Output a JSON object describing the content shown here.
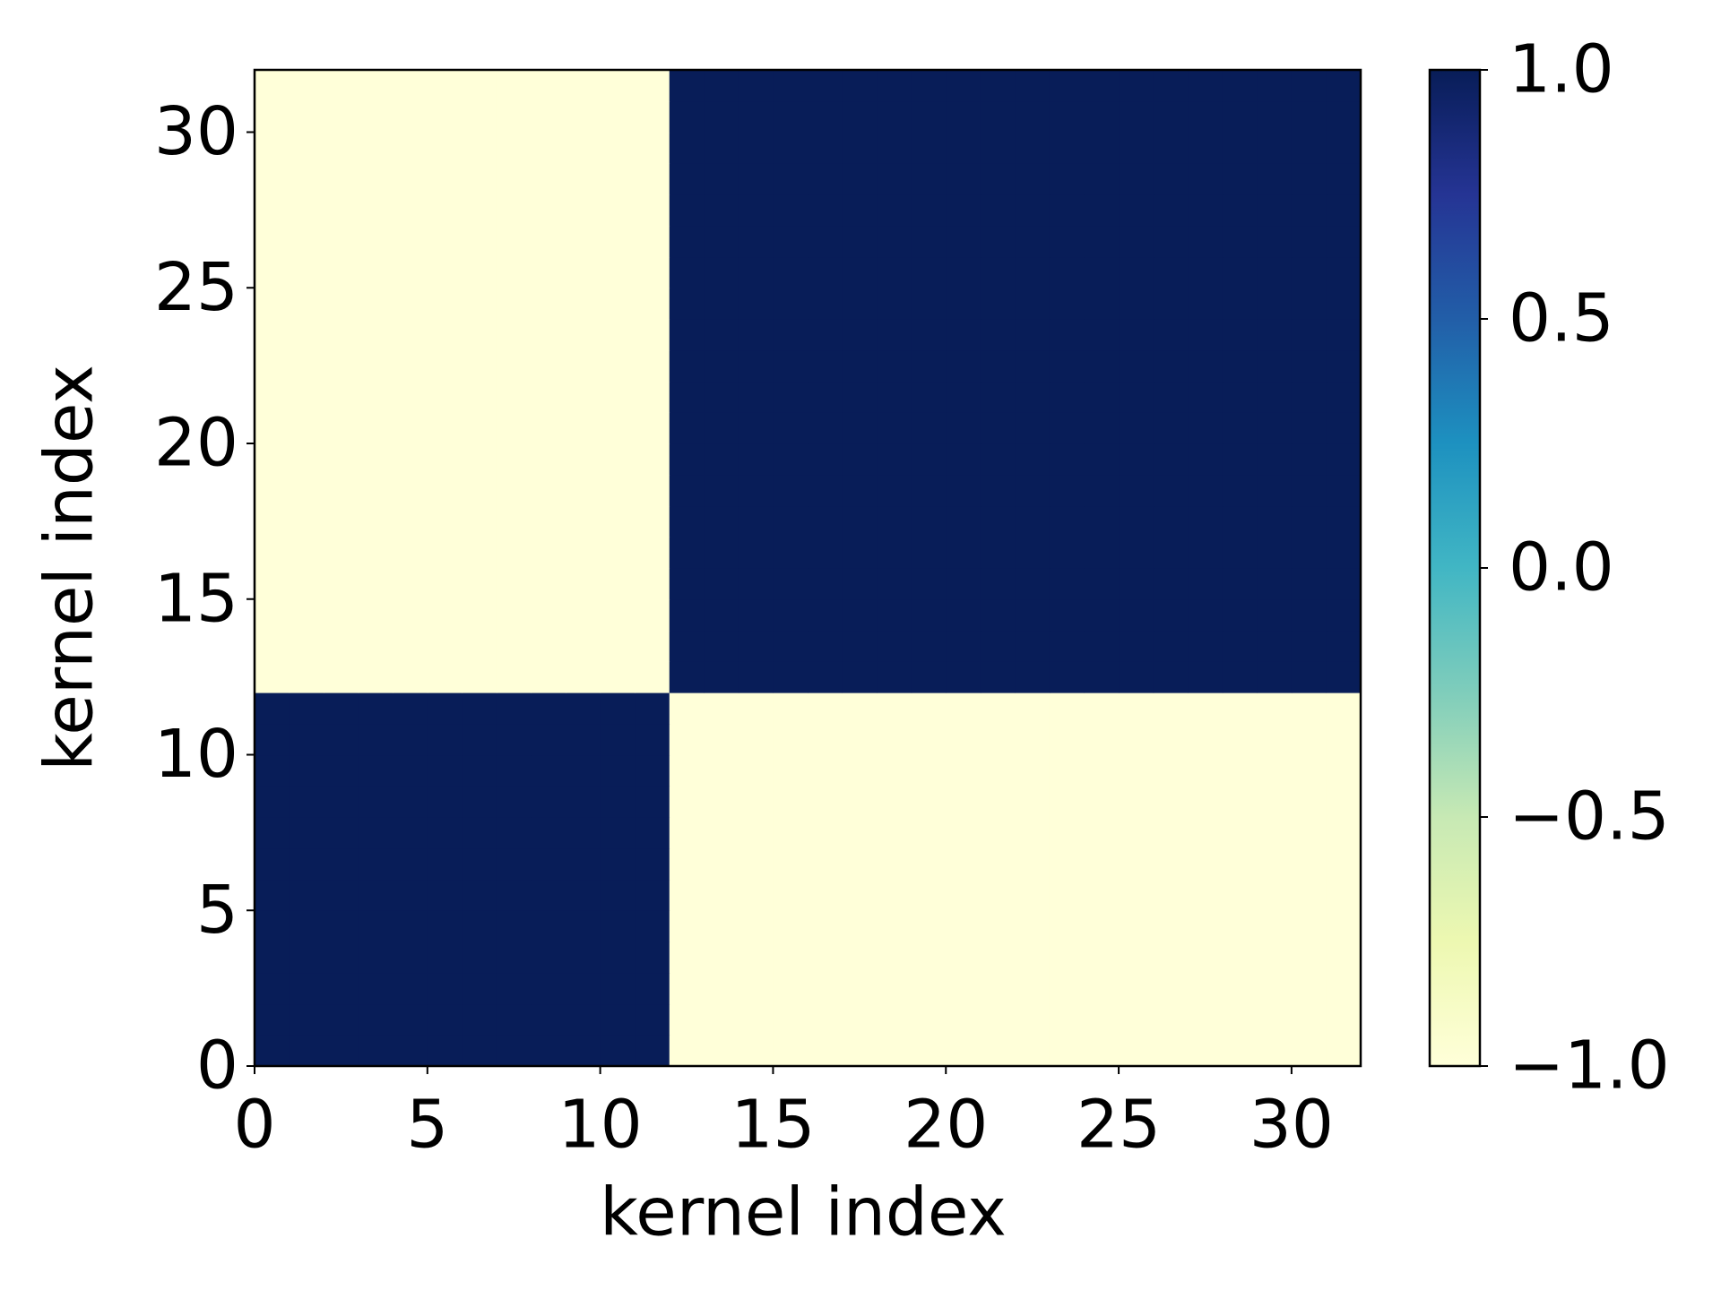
{
  "chart_data": {
    "type": "heatmap",
    "xlabel": "kernel index",
    "ylabel": "kernel index",
    "xlim": [
      0,
      32
    ],
    "ylim": [
      0,
      32
    ],
    "xticks": [
      0,
      5,
      10,
      15,
      20,
      25,
      30
    ],
    "yticks": [
      0,
      5,
      10,
      15,
      20,
      25,
      30
    ],
    "z": [
      [
        1,
        1,
        1,
        1,
        1,
        1,
        1,
        1,
        1,
        1,
        1,
        1,
        -1,
        -1,
        -1,
        -1,
        -1,
        -1,
        -1,
        -1,
        -1,
        -1,
        -1,
        -1,
        -1,
        -1,
        -1,
        -1,
        -1,
        -1,
        -1,
        -1
      ],
      [
        1,
        1,
        1,
        1,
        1,
        1,
        1,
        1,
        1,
        1,
        1,
        1,
        -1,
        -1,
        -1,
        -1,
        -1,
        -1,
        -1,
        -1,
        -1,
        -1,
        -1,
        -1,
        -1,
        -1,
        -1,
        -1,
        -1,
        -1,
        -1,
        -1
      ],
      [
        1,
        1,
        1,
        1,
        1,
        1,
        1,
        1,
        1,
        1,
        1,
        1,
        -1,
        -1,
        -1,
        -1,
        -1,
        -1,
        -1,
        -1,
        -1,
        -1,
        -1,
        -1,
        -1,
        -1,
        -1,
        -1,
        -1,
        -1,
        -1,
        -1
      ],
      [
        1,
        1,
        1,
        1,
        1,
        1,
        1,
        1,
        1,
        1,
        1,
        1,
        -1,
        -1,
        -1,
        -1,
        -1,
        -1,
        -1,
        -1,
        -1,
        -1,
        -1,
        -1,
        -1,
        -1,
        -1,
        -1,
        -1,
        -1,
        -1,
        -1
      ],
      [
        1,
        1,
        1,
        1,
        1,
        1,
        1,
        1,
        1,
        1,
        1,
        1,
        -1,
        -1,
        -1,
        -1,
        -1,
        -1,
        -1,
        -1,
        -1,
        -1,
        -1,
        -1,
        -1,
        -1,
        -1,
        -1,
        -1,
        -1,
        -1,
        -1
      ],
      [
        1,
        1,
        1,
        1,
        1,
        1,
        1,
        1,
        1,
        1,
        1,
        1,
        -1,
        -1,
        -1,
        -1,
        -1,
        -1,
        -1,
        -1,
        -1,
        -1,
        -1,
        -1,
        -1,
        -1,
        -1,
        -1,
        -1,
        -1,
        -1,
        -1
      ],
      [
        1,
        1,
        1,
        1,
        1,
        1,
        1,
        1,
        1,
        1,
        1,
        1,
        -1,
        -1,
        -1,
        -1,
        -1,
        -1,
        -1,
        -1,
        -1,
        -1,
        -1,
        -1,
        -1,
        -1,
        -1,
        -1,
        -1,
        -1,
        -1,
        -1
      ],
      [
        1,
        1,
        1,
        1,
        1,
        1,
        1,
        1,
        1,
        1,
        1,
        1,
        -1,
        -1,
        -1,
        -1,
        -1,
        -1,
        -1,
        -1,
        -1,
        -1,
        -1,
        -1,
        -1,
        -1,
        -1,
        -1,
        -1,
        -1,
        -1,
        -1
      ],
      [
        1,
        1,
        1,
        1,
        1,
        1,
        1,
        1,
        1,
        1,
        1,
        1,
        -1,
        -1,
        -1,
        -1,
        -1,
        -1,
        -1,
        -1,
        -1,
        -1,
        -1,
        -1,
        -1,
        -1,
        -1,
        -1,
        -1,
        -1,
        -1,
        -1
      ],
      [
        1,
        1,
        1,
        1,
        1,
        1,
        1,
        1,
        1,
        1,
        1,
        1,
        -1,
        -1,
        -1,
        -1,
        -1,
        -1,
        -1,
        -1,
        -1,
        -1,
        -1,
        -1,
        -1,
        -1,
        -1,
        -1,
        -1,
        -1,
        -1,
        -1
      ],
      [
        1,
        1,
        1,
        1,
        1,
        1,
        1,
        1,
        1,
        1,
        1,
        1,
        -1,
        -1,
        -1,
        -1,
        -1,
        -1,
        -1,
        -1,
        -1,
        -1,
        -1,
        -1,
        -1,
        -1,
        -1,
        -1,
        -1,
        -1,
        -1,
        -1
      ],
      [
        1,
        1,
        1,
        1,
        1,
        1,
        1,
        1,
        1,
        1,
        1,
        1,
        -1,
        -1,
        -1,
        -1,
        -1,
        -1,
        -1,
        -1,
        -1,
        -1,
        -1,
        -1,
        -1,
        -1,
        -1,
        -1,
        -1,
        -1,
        -1,
        -1
      ],
      [
        -1,
        -1,
        -1,
        -1,
        -1,
        -1,
        -1,
        -1,
        -1,
        -1,
        -1,
        -1,
        1,
        1,
        1,
        1,
        1,
        1,
        1,
        1,
        1,
        1,
        1,
        1,
        1,
        1,
        1,
        1,
        1,
        1,
        1,
        1
      ],
      [
        -1,
        -1,
        -1,
        -1,
        -1,
        -1,
        -1,
        -1,
        -1,
        -1,
        -1,
        -1,
        1,
        1,
        1,
        1,
        1,
        1,
        1,
        1,
        1,
        1,
        1,
        1,
        1,
        1,
        1,
        1,
        1,
        1,
        1,
        1
      ],
      [
        -1,
        -1,
        -1,
        -1,
        -1,
        -1,
        -1,
        -1,
        -1,
        -1,
        -1,
        -1,
        1,
        1,
        1,
        1,
        1,
        1,
        1,
        1,
        1,
        1,
        1,
        1,
        1,
        1,
        1,
        1,
        1,
        1,
        1,
        1
      ],
      [
        -1,
        -1,
        -1,
        -1,
        -1,
        -1,
        -1,
        -1,
        -1,
        -1,
        -1,
        -1,
        1,
        1,
        1,
        1,
        1,
        1,
        1,
        1,
        1,
        1,
        1,
        1,
        1,
        1,
        1,
        1,
        1,
        1,
        1,
        1
      ],
      [
        -1,
        -1,
        -1,
        -1,
        -1,
        -1,
        -1,
        -1,
        -1,
        -1,
        -1,
        -1,
        1,
        1,
        1,
        1,
        1,
        1,
        1,
        1,
        1,
        1,
        1,
        1,
        1,
        1,
        1,
        1,
        1,
        1,
        1,
        1
      ],
      [
        -1,
        -1,
        -1,
        -1,
        -1,
        -1,
        -1,
        -1,
        -1,
        -1,
        -1,
        -1,
        1,
        1,
        1,
        1,
        1,
        1,
        1,
        1,
        1,
        1,
        1,
        1,
        1,
        1,
        1,
        1,
        1,
        1,
        1,
        1
      ],
      [
        -1,
        -1,
        -1,
        -1,
        -1,
        -1,
        -1,
        -1,
        -1,
        -1,
        -1,
        -1,
        1,
        1,
        1,
        1,
        1,
        1,
        1,
        1,
        1,
        1,
        1,
        1,
        1,
        1,
        1,
        1,
        1,
        1,
        1,
        1
      ],
      [
        -1,
        -1,
        -1,
        -1,
        -1,
        -1,
        -1,
        -1,
        -1,
        -1,
        -1,
        -1,
        1,
        1,
        1,
        1,
        1,
        1,
        1,
        1,
        1,
        1,
        1,
        1,
        1,
        1,
        1,
        1,
        1,
        1,
        1,
        1
      ],
      [
        -1,
        -1,
        -1,
        -1,
        -1,
        -1,
        -1,
        -1,
        -1,
        -1,
        -1,
        -1,
        1,
        1,
        1,
        1,
        1,
        1,
        1,
        1,
        1,
        1,
        1,
        1,
        1,
        1,
        1,
        1,
        1,
        1,
        1,
        1
      ],
      [
        -1,
        -1,
        -1,
        -1,
        -1,
        -1,
        -1,
        -1,
        -1,
        -1,
        -1,
        -1,
        1,
        1,
        1,
        1,
        1,
        1,
        1,
        1,
        1,
        1,
        1,
        1,
        1,
        1,
        1,
        1,
        1,
        1,
        1,
        1
      ],
      [
        -1,
        -1,
        -1,
        -1,
        -1,
        -1,
        -1,
        -1,
        -1,
        -1,
        -1,
        -1,
        1,
        1,
        1,
        1,
        1,
        1,
        1,
        1,
        1,
        1,
        1,
        1,
        1,
        1,
        1,
        1,
        1,
        1,
        1,
        1
      ],
      [
        -1,
        -1,
        -1,
        -1,
        -1,
        -1,
        -1,
        -1,
        -1,
        -1,
        -1,
        -1,
        1,
        1,
        1,
        1,
        1,
        1,
        1,
        1,
        1,
        1,
        1,
        1,
        1,
        1,
        1,
        1,
        1,
        1,
        1,
        1
      ],
      [
        -1,
        -1,
        -1,
        -1,
        -1,
        -1,
        -1,
        -1,
        -1,
        -1,
        -1,
        -1,
        1,
        1,
        1,
        1,
        1,
        1,
        1,
        1,
        1,
        1,
        1,
        1,
        1,
        1,
        1,
        1,
        1,
        1,
        1,
        1
      ],
      [
        -1,
        -1,
        -1,
        -1,
        -1,
        -1,
        -1,
        -1,
        -1,
        -1,
        -1,
        -1,
        1,
        1,
        1,
        1,
        1,
        1,
        1,
        1,
        1,
        1,
        1,
        1,
        1,
        1,
        1,
        1,
        1,
        1,
        1,
        1
      ],
      [
        -1,
        -1,
        -1,
        -1,
        -1,
        -1,
        -1,
        -1,
        -1,
        -1,
        -1,
        -1,
        1,
        1,
        1,
        1,
        1,
        1,
        1,
        1,
        1,
        1,
        1,
        1,
        1,
        1,
        1,
        1,
        1,
        1,
        1,
        1
      ],
      [
        -1,
        -1,
        -1,
        -1,
        -1,
        -1,
        -1,
        -1,
        -1,
        -1,
        -1,
        -1,
        1,
        1,
        1,
        1,
        1,
        1,
        1,
        1,
        1,
        1,
        1,
        1,
        1,
        1,
        1,
        1,
        1,
        1,
        1,
        1
      ],
      [
        -1,
        -1,
        -1,
        -1,
        -1,
        -1,
        -1,
        -1,
        -1,
        -1,
        -1,
        -1,
        1,
        1,
        1,
        1,
        1,
        1,
        1,
        1,
        1,
        1,
        1,
        1,
        1,
        1,
        1,
        1,
        1,
        1,
        1,
        1
      ],
      [
        -1,
        -1,
        -1,
        -1,
        -1,
        -1,
        -1,
        -1,
        -1,
        -1,
        -1,
        -1,
        1,
        1,
        1,
        1,
        1,
        1,
        1,
        1,
        1,
        1,
        1,
        1,
        1,
        1,
        1,
        1,
        1,
        1,
        1,
        1
      ],
      [
        -1,
        -1,
        -1,
        -1,
        -1,
        -1,
        -1,
        -1,
        -1,
        -1,
        -1,
        -1,
        1,
        1,
        1,
        1,
        1,
        1,
        1,
        1,
        1,
        1,
        1,
        1,
        1,
        1,
        1,
        1,
        1,
        1,
        1,
        1
      ],
      [
        -1,
        -1,
        -1,
        -1,
        -1,
        -1,
        -1,
        -1,
        -1,
        -1,
        -1,
        -1,
        1,
        1,
        1,
        1,
        1,
        1,
        1,
        1,
        1,
        1,
        1,
        1,
        1,
        1,
        1,
        1,
        1,
        1,
        1,
        1
      ]
    ],
    "colorscale": [
      "#ffffd9",
      "#edf8b1",
      "#c7e9b4",
      "#7fcdbb",
      "#41b6c4",
      "#1d91c0",
      "#225ea8",
      "#253494",
      "#081d58"
    ],
    "clim": [
      -1,
      1
    ],
    "cticks": [
      {
        "value": -1,
        "label": "−1.0"
      },
      {
        "value": -0.5,
        "label": "−0.5"
      },
      {
        "value": 0,
        "label": "0.0"
      },
      0.5,
      {
        "value": 1,
        "label": "1.0"
      }
    ]
  }
}
